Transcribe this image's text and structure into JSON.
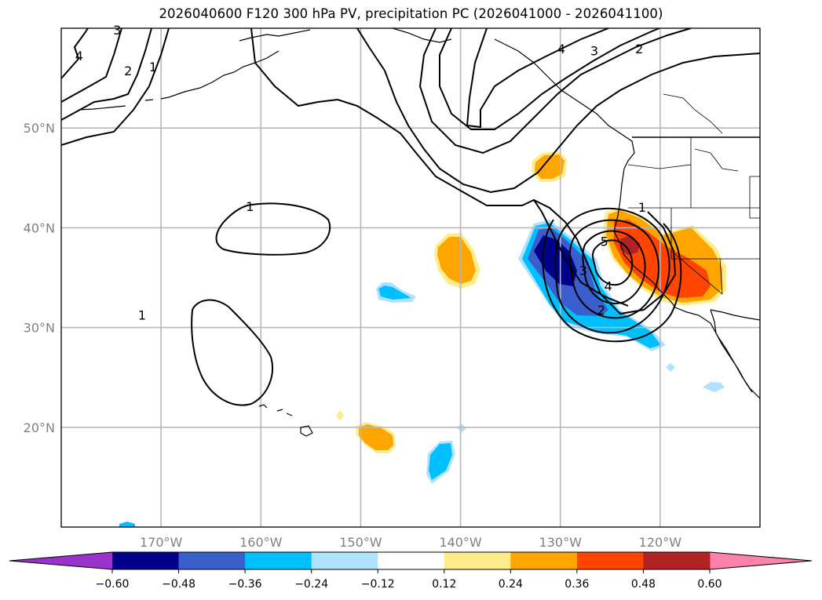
{
  "title": "2026040600 F120 300 hPa PV, precipitation PC (2026041000 - 2026041100)",
  "map": {
    "projection": "PlateCarree",
    "extent_lon": [
      -180,
      -110
    ],
    "extent_lat": [
      10,
      60
    ],
    "gridlines": true,
    "lat_ticks": [
      {
        "lat": 50,
        "label": "50°N"
      },
      {
        "lat": 40,
        "label": "40°N"
      },
      {
        "lat": 30,
        "label": "30°N"
      },
      {
        "lat": 20,
        "label": "20°N"
      }
    ],
    "lon_ticks": [
      {
        "lon": -170,
        "label": "170°W"
      },
      {
        "lon": -160,
        "label": "160°W"
      },
      {
        "lon": -150,
        "label": "150°W"
      },
      {
        "lon": -140,
        "label": "140°W"
      },
      {
        "lon": -130,
        "label": "130°W"
      },
      {
        "lon": -120,
        "label": "120°W"
      }
    ],
    "pv_contour_labels": [
      {
        "text": "4",
        "lon": -178.2,
        "lat": 57.1
      },
      {
        "text": "2",
        "lon": -173.3,
        "lat": 55.6
      },
      {
        "text": "1",
        "lon": -170.8,
        "lat": 56.0
      },
      {
        "text": "3",
        "lon": -174.4,
        "lat": 59.7
      },
      {
        "text": "1",
        "lon": -161.1,
        "lat": 42.0
      },
      {
        "text": "1",
        "lon": -171.9,
        "lat": 31.1
      },
      {
        "text": "4",
        "lon": -129.9,
        "lat": 57.8
      },
      {
        "text": "3",
        "lon": -126.6,
        "lat": 57.6
      },
      {
        "text": "2",
        "lon": -122.1,
        "lat": 57.8
      },
      {
        "text": "1",
        "lon": -121.8,
        "lat": 41.9
      },
      {
        "text": "5",
        "lon": -125.6,
        "lat": 38.5
      },
      {
        "text": "4",
        "lon": -125.2,
        "lat": 34.0
      },
      {
        "text": "3",
        "lon": -127.7,
        "lat": 35.6
      },
      {
        "text": "2",
        "lon": -125.9,
        "lat": 31.6
      }
    ]
  },
  "colorbar": {
    "label": "precipitation PC",
    "ticks": [
      "−0.60",
      "−0.48",
      "−0.36",
      "−0.24",
      "−0.12",
      "0.12",
      "0.24",
      "0.36",
      "0.48",
      "0.60"
    ],
    "bins": [
      {
        "range": "< -0.60",
        "color": "#9933cc"
      },
      {
        "range": "-0.60 to -0.48",
        "color": "#00008b"
      },
      {
        "range": "-0.48 to -0.36",
        "color": "#3a5fcd"
      },
      {
        "range": "-0.36 to -0.24",
        "color": "#00bfff"
      },
      {
        "range": "-0.24 to -0.12",
        "color": "#b0e2ff"
      },
      {
        "range": "-0.12 to 0.12",
        "color": "#ffffff"
      },
      {
        "range": "0.12 to 0.24",
        "color": "#ffec8b"
      },
      {
        "range": "0.24 to 0.36",
        "color": "#ffa500"
      },
      {
        "range": "0.36 to 0.48",
        "color": "#ff4500"
      },
      {
        "range": "0.48 to 0.60",
        "color": "#b22222"
      },
      {
        "range": "> 0.60",
        "color": "#ff82ab"
      }
    ],
    "extend": "both"
  }
}
